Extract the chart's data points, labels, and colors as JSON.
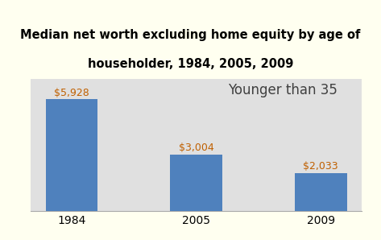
{
  "title_line1": "Median net worth excluding home equity by age of",
  "title_line2": "householder, 1984, 2005, 2009",
  "categories": [
    "1984",
    "2005",
    "2009"
  ],
  "values": [
    5928,
    3004,
    2033
  ],
  "labels": [
    "$5,928",
    "$3,004",
    "$2,033"
  ],
  "bar_color": "#4F81BD",
  "annotation_color": "#C06000",
  "title_fontsize": 10.5,
  "label_fontsize": 9,
  "tick_fontsize": 10,
  "legend_text": "Younger than 35",
  "legend_fontsize": 12,
  "legend_color": "#404040",
  "plot_bg_color": "#E0E0E0",
  "outer_bg_color": "#FFFFF0",
  "ylim": [
    0,
    7000
  ],
  "bar_width": 0.42
}
